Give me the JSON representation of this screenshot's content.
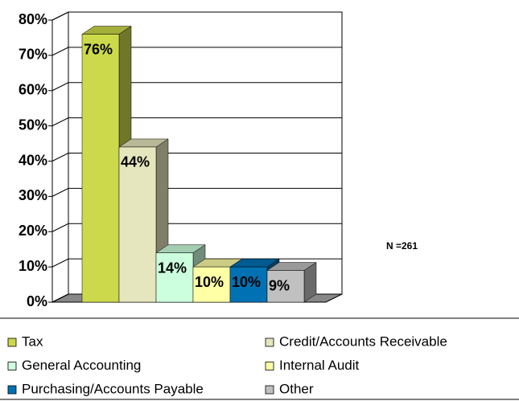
{
  "chart_data": {
    "type": "bar",
    "categories": [
      "Tax",
      "Credit/Accounts Receivable",
      "General Accounting",
      "Internal Audit",
      "Purchasing/Accounts Payable",
      "Other"
    ],
    "values": [
      76,
      44,
      14,
      10,
      10,
      9
    ],
    "value_labels": [
      "76%",
      "44%",
      "14%",
      "10%",
      "10%",
      "9%"
    ],
    "colors": [
      "#ccd94a",
      "#e6e6be",
      "#ccffdd",
      "#ffffa6",
      "#0072b4",
      "#c0c0c0"
    ],
    "ylim": [
      0,
      80
    ],
    "yticks": [
      {
        "value": 0,
        "label": "0%"
      },
      {
        "value": 10,
        "label": "10%"
      },
      {
        "value": 20,
        "label": "20%"
      },
      {
        "value": 30,
        "label": "30%"
      },
      {
        "value": 40,
        "label": "40%"
      },
      {
        "value": 50,
        "label": "50%"
      },
      {
        "value": 60,
        "label": "60%"
      },
      {
        "value": 70,
        "label": "70%"
      },
      {
        "value": 80,
        "label": "80%"
      }
    ],
    "grid": true,
    "annotation": "N =261"
  }
}
